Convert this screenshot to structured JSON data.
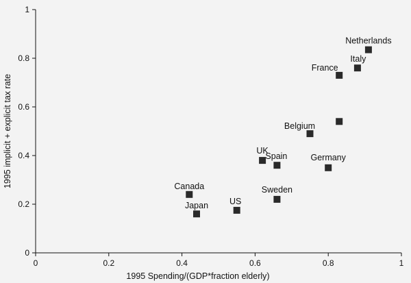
{
  "chart_data": {
    "type": "scatter",
    "title": "",
    "xlabel": "1995 Spending/(GDP*fraction elderly)",
    "ylabel": "1995 implicit + explicit tax rate",
    "xlim": [
      0,
      1
    ],
    "ylim": [
      0,
      1
    ],
    "xticks": [
      0,
      0.2,
      0.4,
      0.6,
      0.8,
      1
    ],
    "xtick_labels": [
      "0",
      "0.2",
      "0.4",
      "0.6",
      "0.8",
      "1"
    ],
    "yticks": [
      0,
      0.2,
      0.4,
      0.6,
      0.8,
      1
    ],
    "ytick_labels": [
      "0",
      "0.2",
      "0.4",
      "0.6",
      "0.8",
      "1"
    ],
    "grid": false,
    "marker": "square",
    "marker_color": "#2a2a2a",
    "points": [
      {
        "label": "Netherlands",
        "x": 0.91,
        "y": 0.835
      },
      {
        "label": "Italy",
        "x": 0.88,
        "y": 0.76
      },
      {
        "label": "France",
        "x": 0.83,
        "y": 0.73
      },
      {
        "label": "",
        "x": 0.83,
        "y": 0.54
      },
      {
        "label": "Belgium",
        "x": 0.75,
        "y": 0.49
      },
      {
        "label": "Germany",
        "x": 0.8,
        "y": 0.35
      },
      {
        "label": "UK",
        "x": 0.62,
        "y": 0.38
      },
      {
        "label": "Spain",
        "x": 0.66,
        "y": 0.36
      },
      {
        "label": "Sweden",
        "x": 0.66,
        "y": 0.22
      },
      {
        "label": "US",
        "x": 0.55,
        "y": 0.175
      },
      {
        "label": "Canada",
        "x": 0.42,
        "y": 0.24
      },
      {
        "label": "Japan",
        "x": 0.44,
        "y": 0.16
      }
    ]
  }
}
